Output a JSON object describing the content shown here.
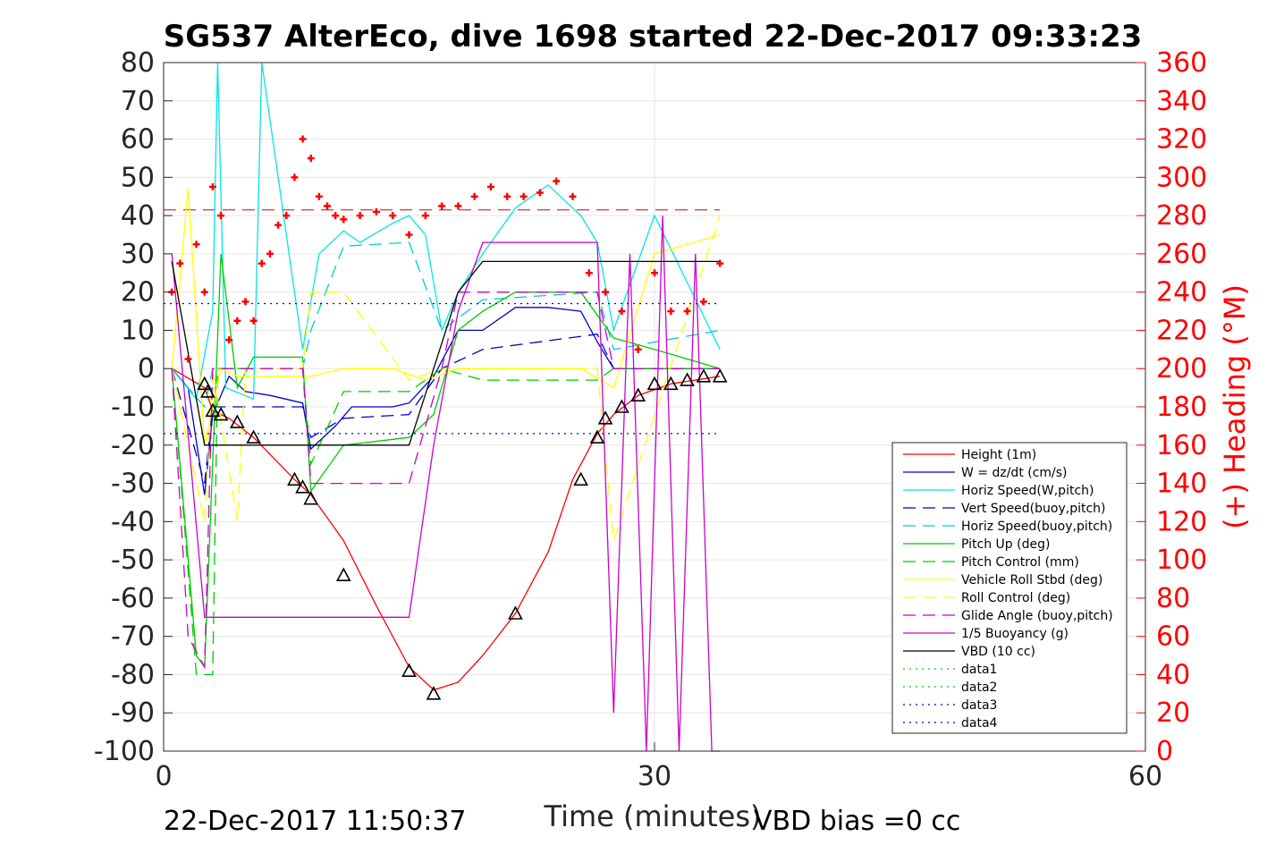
{
  "chart_data": {
    "type": "line",
    "title": "SG537 AlterEco, dive 1698 started 22-Dec-2017 09:33:23",
    "xlabel": "Time (minutes)",
    "ylabel": "",
    "y2label": "(+) Heading (°M)",
    "xlim": [
      0,
      60
    ],
    "ylim": [
      -100,
      80
    ],
    "y2lim": [
      0,
      360
    ],
    "x_ticks": [
      "0",
      "30",
      "60"
    ],
    "y_ticks": [
      "80",
      "70",
      "60",
      "50",
      "40",
      "30",
      "20",
      "10",
      "0",
      "-10",
      "-20",
      "-30",
      "-40",
      "-50",
      "-60",
      "-70",
      "-80",
      "-90",
      "-100"
    ],
    "y2_ticks": [
      "360",
      "340",
      "320",
      "300",
      "280",
      "260",
      "240",
      "220",
      "200",
      "180",
      "160",
      "140",
      "120",
      "100",
      "80",
      "60",
      "40",
      "20",
      "0"
    ],
    "grid": true,
    "legend_position": "lower-right",
    "footer_left": "22-Dec-2017 11:50:37",
    "footer_right": "VBD bias =0 cc",
    "series": [
      {
        "name": "Height (1m)",
        "color": "#ff0000",
        "style": "solid",
        "x": [
          0.5,
          2.5,
          3.0,
          4.0,
          5.5,
          8.0,
          9.0,
          11.0,
          13.0,
          15.0,
          16.5,
          18.0,
          19.5,
          21.5,
          23.5,
          25.0,
          26.5,
          27.5,
          29.0,
          31.0,
          34.0
        ],
        "y": [
          0,
          -5,
          -11,
          -13,
          -18,
          -29,
          -33,
          -45,
          -62,
          -78,
          -84,
          -82,
          -75,
          -64,
          -48,
          -29,
          -17,
          -12,
          -7,
          -4,
          -2
        ]
      },
      {
        "name": "W = dz/dt (cm/s)",
        "color": "#0000cc",
        "style": "solid",
        "x": [
          0.5,
          1.5,
          2.5,
          3.0,
          4.0,
          5.0,
          6.5,
          8.5,
          9.0,
          10.5,
          11.5,
          14.0,
          15.0,
          16.5,
          18.0,
          19.5,
          21.5,
          23.5,
          25.5,
          26.5,
          27.5,
          30.0,
          34.0
        ],
        "y": [
          0,
          -5,
          -33,
          -12,
          -2,
          -6,
          -7,
          -9,
          -21,
          -15,
          -10,
          -10,
          -9,
          -2,
          10,
          10,
          16,
          16,
          15,
          7,
          0,
          0,
          0
        ]
      },
      {
        "name": "Horiz Speed(W,pitch)",
        "color": "#00e6e6",
        "style": "solid",
        "x": [
          0.5,
          2.0,
          3.0,
          3.3,
          3.8,
          5.5,
          6.0,
          8.5,
          9.5,
          11.0,
          12.0,
          14.0,
          15.0,
          16.0,
          17.0,
          18.0,
          19.5,
          21.5,
          23.5,
          25.5,
          26.5,
          27.5,
          30.0,
          34.0
        ],
        "y": [
          0,
          -8,
          15,
          80,
          -5,
          -8,
          80,
          5,
          30,
          36,
          33,
          38,
          40,
          35,
          10,
          20,
          30,
          42,
          48,
          40,
          33,
          10,
          40,
          5
        ]
      },
      {
        "name": "Vert Speed(buoy,pitch)",
        "color": "#0000cc",
        "style": "dashed",
        "x": [
          0.5,
          2.5,
          3.0,
          8.5,
          9.0,
          11.0,
          15.0,
          17.0,
          19.5,
          26.5,
          27.5,
          34.0
        ],
        "y": [
          0,
          -30,
          -10,
          -10,
          -18,
          -13,
          -12,
          0,
          5,
          9,
          0,
          0
        ]
      },
      {
        "name": "Horiz Speed(buoy,pitch)",
        "color": "#00cccc",
        "style": "dashed",
        "x": [
          0.5,
          2.5,
          3.0,
          8.5,
          9.0,
          11.0,
          15.0,
          17.0,
          19.5,
          26.5,
          27.5,
          34.0
        ],
        "y": [
          0,
          -10,
          0,
          0,
          10,
          32,
          33,
          10,
          18,
          20,
          5,
          10
        ]
      },
      {
        "name": "Pitch Up (deg)",
        "color": "#00cc00",
        "style": "solid",
        "x": [
          0.5,
          2.0,
          2.5,
          3.5,
          4.5,
          5.5,
          8.5,
          9.0,
          11.0,
          15.0,
          16.5,
          18.0,
          19.5,
          21.5,
          25.5,
          27.5,
          30.0,
          34.0
        ],
        "y": [
          0,
          -75,
          -78,
          30,
          -5,
          3,
          3,
          -32,
          -20,
          -18,
          -12,
          10,
          15,
          20,
          20,
          8,
          5,
          0
        ]
      },
      {
        "name": "Pitch Control (mm)",
        "color": "#00cc00",
        "style": "dashed",
        "x": [
          0.5,
          2.0,
          3.0,
          3.3,
          8.5,
          9.0,
          11.0,
          15.0,
          17.0,
          19.5,
          26.5,
          27.5,
          34.0
        ],
        "y": [
          0,
          -80,
          -80,
          0,
          0,
          -25,
          -6,
          -6,
          0,
          -3,
          -3,
          0,
          0
        ]
      },
      {
        "name": "Vehicle Roll Stbd (deg)",
        "color": "#ffff00",
        "style": "solid",
        "x": [
          0.5,
          1.5,
          2.5,
          3.5,
          4.5,
          8.5,
          9.0,
          11.0,
          14.0,
          16.0,
          18.0,
          25.5,
          27.5,
          30.0,
          34.0
        ],
        "y": [
          0,
          47,
          -20,
          0,
          -2,
          -2,
          -2,
          0,
          0,
          -3,
          0,
          0,
          -5,
          30,
          35
        ]
      },
      {
        "name": "Roll Control (deg)",
        "color": "#ffff00",
        "style": "dashed",
        "x": [
          0.5,
          2.5,
          3.0,
          4.5,
          5.0,
          8.5,
          9.0,
          11.0,
          15.0,
          17.0,
          26.5,
          27.5,
          34.0
        ],
        "y": [
          0,
          -40,
          0,
          -40,
          0,
          0,
          20,
          20,
          -3,
          0,
          0,
          -45,
          40
        ]
      },
      {
        "name": "Glide Angle (buoy,pitch)",
        "color": "#cc00cc",
        "style": "dashed",
        "x": [
          0.5,
          1.5,
          2.5,
          3.0,
          8.5,
          9.0,
          11.0,
          15.0,
          17.0,
          18.0,
          26.5,
          27.5,
          34.0
        ],
        "y": [
          0,
          -70,
          -78,
          0,
          0,
          -30,
          -30,
          -30,
          0,
          20,
          20,
          0,
          0
        ]
      },
      {
        "name": "1/5 Buoyancy (g)",
        "color": "#cc00cc",
        "style": "solid",
        "x": [
          0.5,
          2.5,
          3.0,
          15.0,
          16.5,
          18.0,
          19.5,
          26.5,
          27.5,
          28.5,
          29.5,
          30.5,
          31.5,
          32.5,
          33.5,
          34.0
        ],
        "y": [
          30,
          -65,
          -65,
          -65,
          -20,
          15,
          33,
          33,
          -90,
          30,
          -100,
          40,
          -100,
          30,
          -100,
          -100
        ]
      },
      {
        "name": "VBD (10 cc)",
        "color": "#000000",
        "style": "solid",
        "x": [
          0.5,
          2.5,
          15.0,
          16.5,
          18.0,
          19.5,
          34.0
        ],
        "y": [
          28,
          -20,
          -20,
          0,
          20,
          28,
          28
        ]
      },
      {
        "name": "data1",
        "color": "#00cc00",
        "style": "dotted",
        "x": [],
        "y": []
      },
      {
        "name": "data2",
        "color": "#00cc00",
        "style": "dotted",
        "x": [],
        "y": []
      },
      {
        "name": "data3",
        "color": "#0000cc",
        "style": "dotted",
        "x": [
          0,
          34.0
        ],
        "y": [
          -17,
          -17
        ]
      },
      {
        "name": "data4",
        "color": "#0000cc",
        "style": "dotted",
        "x": [
          0,
          34.0
        ],
        "y": [
          17,
          17
        ]
      }
    ],
    "reference_line": {
      "y": 41.5,
      "color": "#cc0000",
      "style": "dashed",
      "x": [
        0,
        34.0
      ]
    },
    "heading_points": {
      "color": "#ff0000",
      "marker": "+",
      "axis": "right",
      "x": [
        0.5,
        1.0,
        1.5,
        2.0,
        2.5,
        3.0,
        3.5,
        4.0,
        4.5,
        5.0,
        5.5,
        6.0,
        6.5,
        7.0,
        7.5,
        8.0,
        8.5,
        9.0,
        9.5,
        10.0,
        10.5,
        11.0,
        12.0,
        13.0,
        14.0,
        15.0,
        16.0,
        17.0,
        18.0,
        19.0,
        20.0,
        21.0,
        22.0,
        23.0,
        24.0,
        25.0,
        26.0,
        27.0,
        28.0,
        29.0,
        30.0,
        31.0,
        32.0,
        33.0,
        34.0
      ],
      "y": [
        240,
        255,
        205,
        265,
        240,
        295,
        280,
        215,
        225,
        235,
        225,
        255,
        260,
        275,
        280,
        300,
        320,
        310,
        290,
        285,
        280,
        278,
        280,
        282,
        280,
        270,
        280,
        285,
        285,
        290,
        295,
        290,
        290,
        292,
        298,
        290,
        250,
        240,
        230,
        210,
        250,
        230,
        230,
        235,
        255
      ]
    },
    "triangle_points": {
      "color": "#000000",
      "marker": "triangle",
      "x": [
        2.5,
        2.7,
        3.0,
        3.5,
        4.5,
        5.5,
        8.0,
        8.5,
        9.0,
        11.0,
        15.0,
        16.5,
        21.5,
        25.5,
        26.5,
        27.0,
        28.0,
        29.0,
        30.0,
        31.0,
        32.0,
        33.0,
        34.0
      ],
      "y": [
        -4,
        -6,
        -11,
        -12,
        -14,
        -18,
        -29,
        -31,
        -34,
        -54,
        -79,
        -85,
        -64,
        -29,
        -18,
        -13,
        -10,
        -7,
        -4,
        -4,
        -3,
        -2,
        -2
      ]
    }
  }
}
